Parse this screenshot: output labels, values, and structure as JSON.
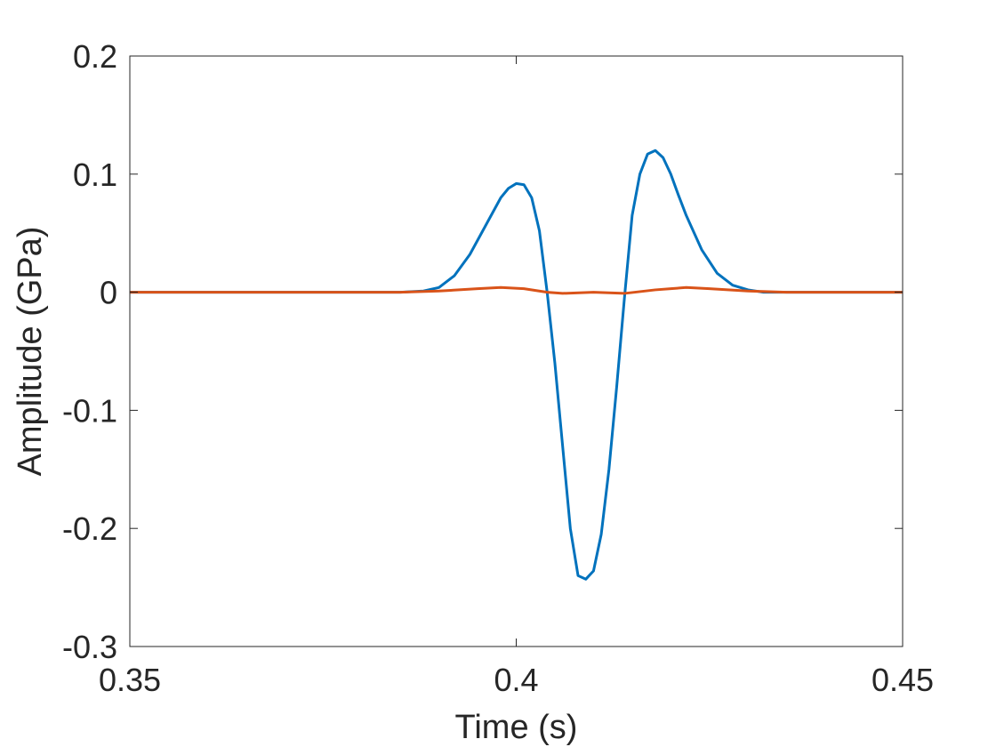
{
  "chart_data": {
    "type": "line",
    "title": "",
    "xlabel": "Time (s)",
    "ylabel": "Amplitude (GPa)",
    "xlim": [
      0.35,
      0.45
    ],
    "ylim": [
      -0.3,
      0.2
    ],
    "xticks": [
      "0.35",
      "0.4",
      "0.45"
    ],
    "yticks": [
      "-0.3",
      "-0.2",
      "-0.1",
      "0",
      "0.1",
      "0.2"
    ],
    "grid": false,
    "legend": "none",
    "series": [
      {
        "color": "#0072BD",
        "x": [
          0.35,
          0.38,
          0.385,
          0.388,
          0.39,
          0.392,
          0.394,
          0.396,
          0.398,
          0.399,
          0.4,
          0.401,
          0.402,
          0.403,
          0.404,
          0.405,
          0.406,
          0.407,
          0.408,
          0.409,
          0.41,
          0.411,
          0.412,
          0.413,
          0.414,
          0.415,
          0.416,
          0.417,
          0.418,
          0.419,
          0.42,
          0.421,
          0.422,
          0.424,
          0.426,
          0.428,
          0.43,
          0.432,
          0.435,
          0.45
        ],
        "y": [
          0.0,
          0.0,
          0.0,
          0.001,
          0.004,
          0.014,
          0.032,
          0.056,
          0.08,
          0.088,
          0.092,
          0.091,
          0.08,
          0.052,
          0.0,
          -0.06,
          -0.13,
          -0.2,
          -0.24,
          -0.243,
          -0.236,
          -0.205,
          -0.15,
          -0.08,
          -0.005,
          0.065,
          0.1,
          0.117,
          0.12,
          0.114,
          0.1,
          0.082,
          0.065,
          0.036,
          0.016,
          0.006,
          0.002,
          0.0,
          0.0,
          0.0
        ]
      },
      {
        "color": "#D95319",
        "x": [
          0.35,
          0.385,
          0.39,
          0.395,
          0.398,
          0.401,
          0.404,
          0.406,
          0.41,
          0.414,
          0.418,
          0.42,
          0.422,
          0.425,
          0.43,
          0.435,
          0.45
        ],
        "y": [
          0.0,
          0.0,
          0.001,
          0.003,
          0.004,
          0.003,
          0.0,
          -0.001,
          0.0,
          -0.001,
          0.002,
          0.003,
          0.004,
          0.003,
          0.001,
          0.0,
          0.0
        ]
      }
    ]
  }
}
